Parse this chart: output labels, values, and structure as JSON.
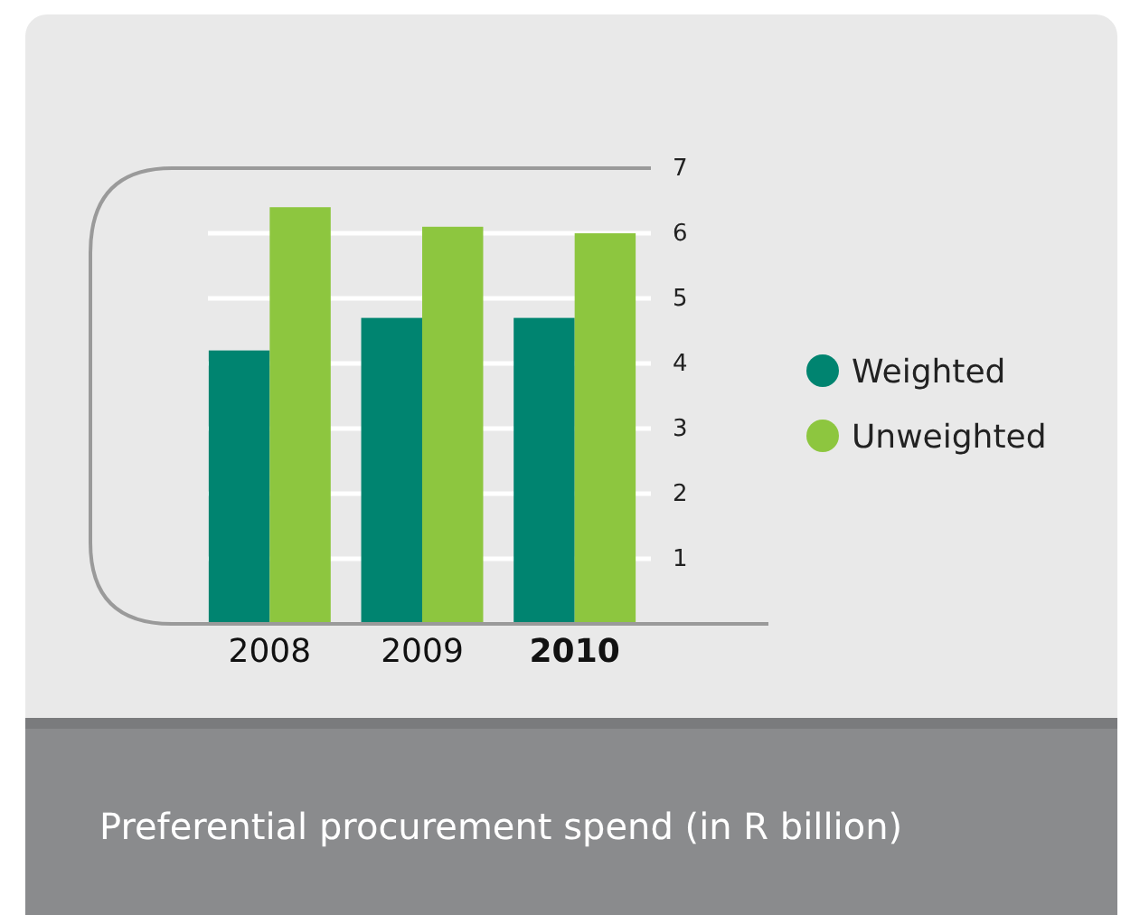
{
  "chart_data": {
    "type": "bar",
    "title": "Preferential procurement spend (in R billion)",
    "categories": [
      "2008",
      "2009",
      "2010"
    ],
    "series": [
      {
        "name": "Weighted",
        "color": "#008470",
        "values": [
          4.2,
          4.7,
          4.7
        ]
      },
      {
        "name": "Unweighted",
        "color": "#8dc63f",
        "values": [
          6.4,
          6.1,
          6.0
        ]
      }
    ],
    "ylim": [
      0,
      7
    ],
    "yticks": [
      1,
      2,
      3,
      4,
      5,
      6,
      7
    ],
    "grid": "y",
    "legend": "right"
  }
}
